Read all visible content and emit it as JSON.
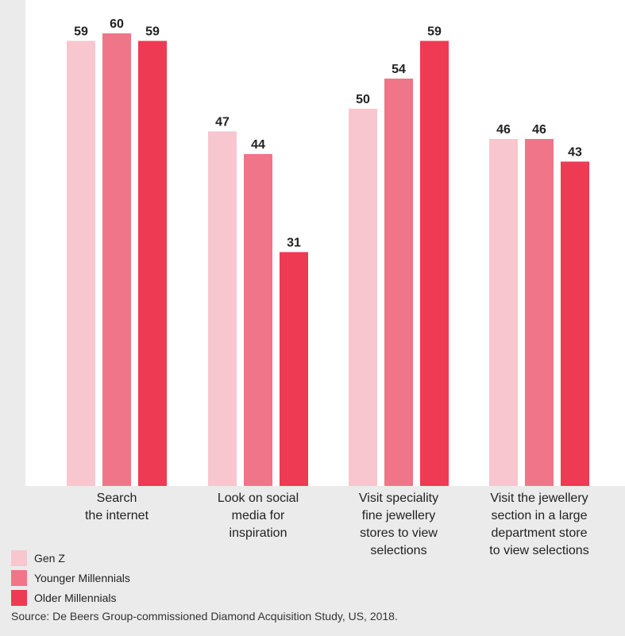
{
  "chart_data": {
    "type": "bar",
    "title": "",
    "xlabel": "",
    "ylabel": "",
    "ylim": [
      0,
      62
    ],
    "grid": false,
    "legend_position": "bottom-left",
    "categories": [
      [
        "Search",
        "the internet"
      ],
      [
        "Look on social",
        "media for",
        "inspiration"
      ],
      [
        "Visit speciality",
        "fine jewellery",
        "stores to view",
        "selections"
      ],
      [
        "Visit the jewellery",
        "section in a large",
        "department store",
        "to view selections"
      ]
    ],
    "series": [
      {
        "name": "Gen Z",
        "color": "#f7c6cf",
        "values": [
          59,
          47,
          50,
          46
        ]
      },
      {
        "name": "Younger Millennials",
        "color": "#f07588",
        "values": [
          60,
          44,
          54,
          46
        ]
      },
      {
        "name": "Older Millennials",
        "color": "#ee3a52",
        "values": [
          59,
          31,
          59,
          43
        ]
      }
    ]
  },
  "source_note": "Source: De Beers Group-commissioned Diamond Acquisition Study, US, 2018."
}
